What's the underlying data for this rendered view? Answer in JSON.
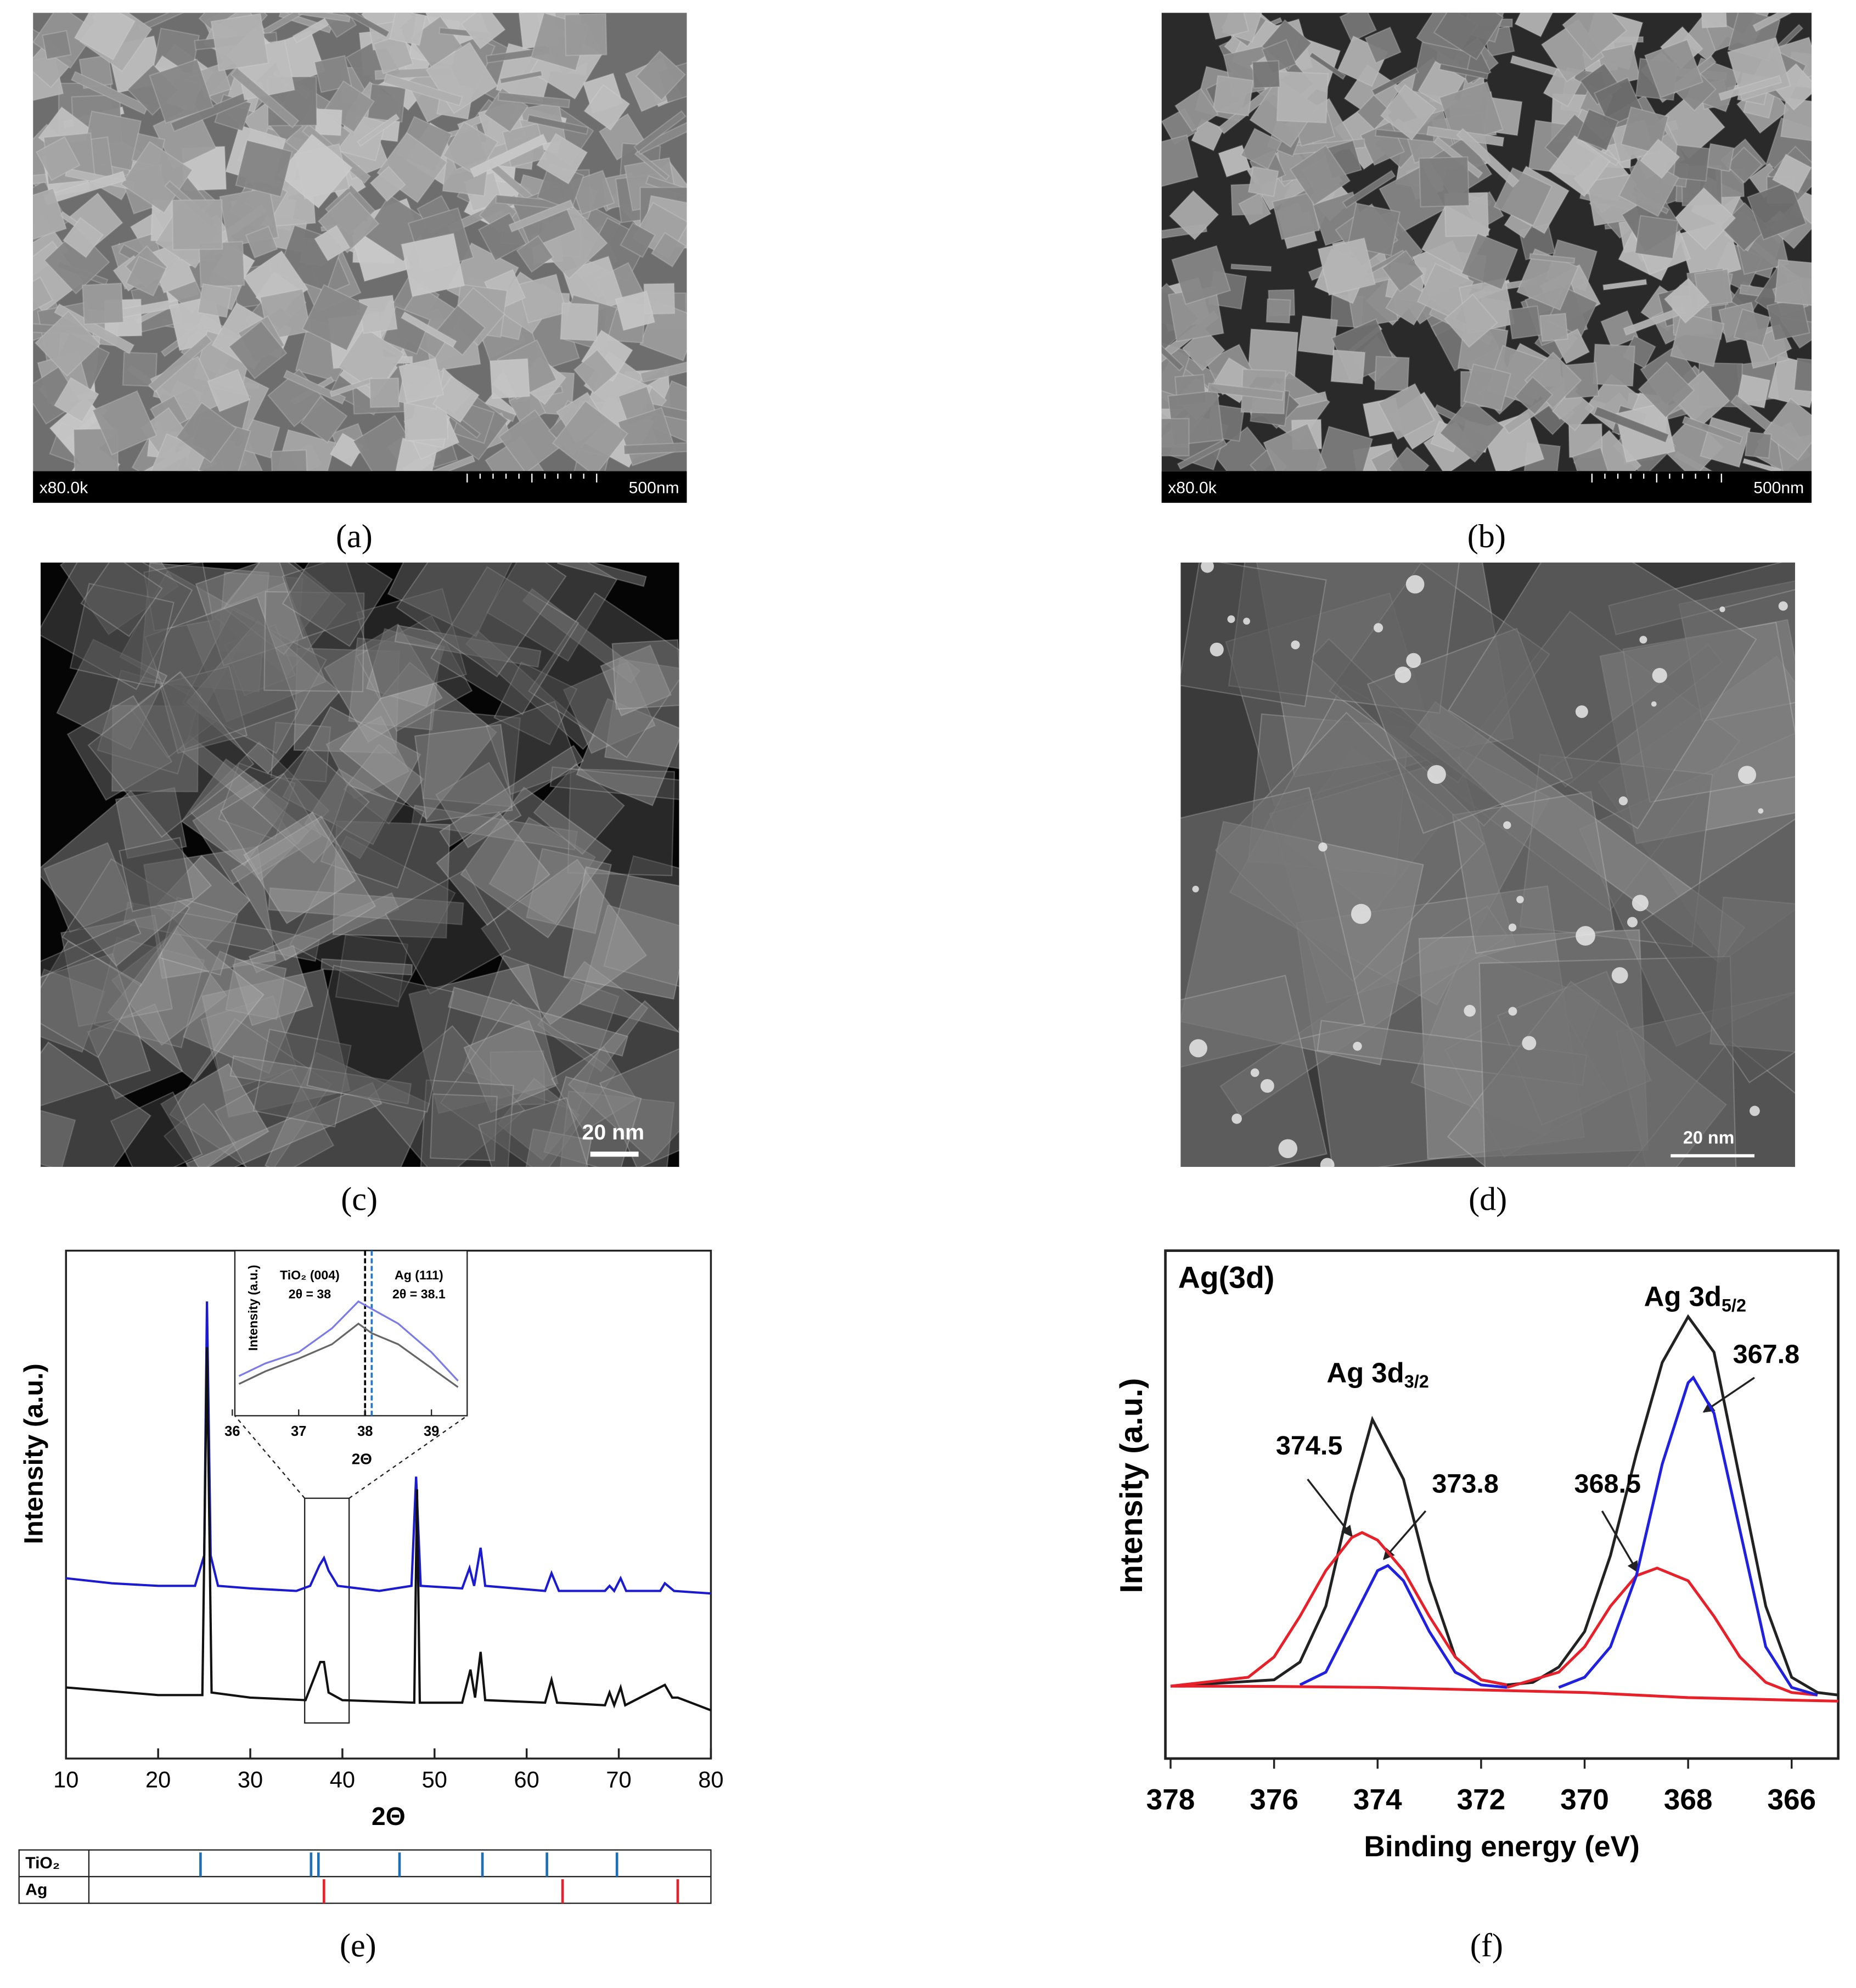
{
  "panels": [
    {
      "caption": "(a)",
      "magnification": "x80.0k",
      "scale": "500nm"
    },
    {
      "caption": "(b)",
      "magnification": "x80.0k",
      "scale": "500nm"
    },
    {
      "caption": "(c)",
      "scale": "20 nm"
    },
    {
      "caption": "(d)",
      "scale": "20 nm"
    },
    {
      "caption": "(e)"
    },
    {
      "caption": "(f)"
    }
  ],
  "chart_data": [
    {
      "type": "line",
      "xlabel": "2Θ",
      "ylabel": "Intensity (a.u.)",
      "xlim": [
        10,
        80
      ],
      "xticks": [
        10,
        20,
        30,
        40,
        50,
        60,
        70,
        80
      ],
      "ylim": [
        0,
        100
      ],
      "series": [
        {
          "color": "#1a1ad0",
          "x": [
            10,
            15,
            20,
            24,
            25,
            25.3,
            25.7,
            26.5,
            30,
            35,
            36.5,
            37.5,
            38,
            38.5,
            39.5,
            44,
            47.5,
            48,
            48.5,
            53,
            53.8,
            54.3,
            55,
            55.5,
            62,
            62.7,
            63.5,
            68.5,
            69,
            69.5,
            70.2,
            70.8,
            74.5,
            75,
            76,
            80
          ],
          "values": [
            35.5,
            34.5,
            34,
            34,
            40,
            90,
            40,
            34,
            33.5,
            33,
            34,
            38,
            39.5,
            37,
            34,
            33,
            34,
            55.5,
            34,
            33.5,
            37.5,
            34,
            41.5,
            34,
            33,
            36.5,
            33,
            33,
            34,
            33,
            35.5,
            33,
            33,
            34.5,
            33,
            32.5
          ]
        },
        {
          "color": "#111111",
          "x": [
            10,
            20,
            24.8,
            25.3,
            25.8,
            30,
            36,
            37.6,
            38,
            38.5,
            40,
            47.8,
            48.1,
            48.4,
            53,
            53.9,
            54.4,
            55,
            55.5,
            62,
            62.7,
            63.3,
            68.5,
            69,
            69.5,
            70.2,
            70.7,
            75,
            75.8,
            76.4,
            80
          ],
          "values": [
            14,
            12.5,
            12.5,
            81,
            13,
            12,
            11.5,
            19,
            19,
            13,
            11.5,
            11,
            53,
            11,
            11,
            17.5,
            12,
            21,
            11.5,
            11,
            15.5,
            11,
            10.5,
            13,
            10.5,
            14,
            10.5,
            14.5,
            12,
            12,
            9.5
          ]
        }
      ],
      "inset": {
        "xlabel": "2Θ",
        "ylabel": "Intensity (a.u.)",
        "xlim": [
          36,
          39.5
        ],
        "xticks": [
          36,
          37,
          38,
          39
        ],
        "ylim": [
          0,
          100
        ],
        "series": [
          {
            "color": "#7a7ae8",
            "x": [
              36.1,
              36.5,
              37,
              37.5,
              37.9,
              38.2,
              38.5,
              39,
              39.4
            ],
            "values": [
              25,
              33,
              40,
              55,
              72,
              65,
              58,
              40,
              22
            ]
          },
          {
            "color": "#666666",
            "x": [
              36.1,
              36.5,
              37,
              37.5,
              37.9,
              38.1,
              38.5,
              39,
              39.4
            ],
            "values": [
              20,
              28,
              36,
              45,
              58,
              52,
              45,
              30,
              18
            ]
          }
        ],
        "markers": [
          {
            "value": 38,
            "color": "#000000"
          },
          {
            "value": 38.1,
            "color": "#1f77d0"
          }
        ],
        "annotations": [
          {
            "text": "TiO₂ (004)"
          },
          {
            "text": "2θ = 38"
          },
          {
            "text": "Ag (111)"
          },
          {
            "text": "2θ = 38.1"
          }
        ]
      },
      "reference": [
        {
          "name": "TiO₂",
          "color": "#1f6fb5",
          "positions": [
            24.6,
            36.6,
            37.4,
            46.2,
            55.2,
            62.2,
            69.8
          ]
        },
        {
          "name": "Ag",
          "color": "#e8202a",
          "positions": [
            38.0,
            63.9,
            76.4
          ]
        }
      ]
    },
    {
      "type": "line",
      "title": "Ag(3d)",
      "xlabel": "Binding energy (eV)",
      "ylabel": "Intensity (a.u.)",
      "xlim": [
        378.1,
        365.1
      ],
      "xticks": [
        378,
        376,
        374,
        372,
        370,
        368,
        366
      ],
      "ylim": [
        0,
        100
      ],
      "series": [
        {
          "color": "#222222",
          "x": [
            378,
            376,
            375.5,
            375,
            374.5,
            374.1,
            373.5,
            373,
            372.5,
            372,
            371.5,
            371,
            370.5,
            370,
            369.5,
            369,
            368.5,
            368,
            367.5,
            367,
            366.5,
            366,
            365.5,
            365.1
          ],
          "values": [
            14.25,
            15.5,
            19,
            30,
            52,
            66.75,
            55,
            35,
            20,
            15.5,
            14.5,
            15,
            18,
            25,
            40,
            60,
            78,
            87,
            80,
            55,
            30,
            16,
            13,
            12.5
          ]
        },
        {
          "color": "#e8202a",
          "x": [
            378,
            376.5,
            376,
            375.5,
            375,
            374.5,
            374.3,
            374,
            373.5,
            373,
            372.5,
            372,
            371.5
          ],
          "values": [
            14.25,
            16,
            20,
            28,
            37,
            43.5,
            44.5,
            43,
            37,
            28,
            20,
            15.5,
            14.5
          ]
        },
        {
          "color": "#2020e0",
          "x": [
            375.5,
            375,
            374.5,
            374,
            373.8,
            373.5,
            373,
            372.5,
            372,
            371.5
          ],
          "values": [
            14.5,
            17,
            27,
            37,
            38,
            35,
            25,
            17,
            14.5,
            14
          ]
        },
        {
          "color": "#e8202a",
          "x": [
            371.5,
            370.5,
            370,
            369.5,
            369,
            368.6,
            368,
            367.5,
            367,
            366.5,
            366,
            365.5
          ],
          "values": [
            14,
            17,
            22,
            30,
            36,
            37.5,
            35,
            28,
            20,
            15,
            13,
            12.5
          ]
        },
        {
          "color": "#2020e0",
          "x": [
            370.5,
            370,
            369.5,
            369,
            368.5,
            368,
            367.9,
            367.5,
            367,
            366.5,
            366,
            365.5
          ],
          "values": [
            14,
            16,
            22,
            36,
            58,
            74,
            75,
            68,
            45,
            22,
            14,
            12.5
          ]
        },
        {
          "color": "#e8202a",
          "x": [
            378,
            376,
            374,
            372,
            370,
            368,
            366,
            365.1
          ],
          "values": [
            14.25,
            14.2,
            14,
            13.5,
            13,
            12,
            11.5,
            11.3
          ]
        }
      ],
      "annotations": [
        {
          "text": "Ag 3d",
          "sub": "3/2"
        },
        {
          "text": "Ag 3d",
          "sub": "5/2"
        }
      ],
      "peak_labels": [
        374.5,
        373.8,
        368.5,
        367.8
      ]
    }
  ]
}
